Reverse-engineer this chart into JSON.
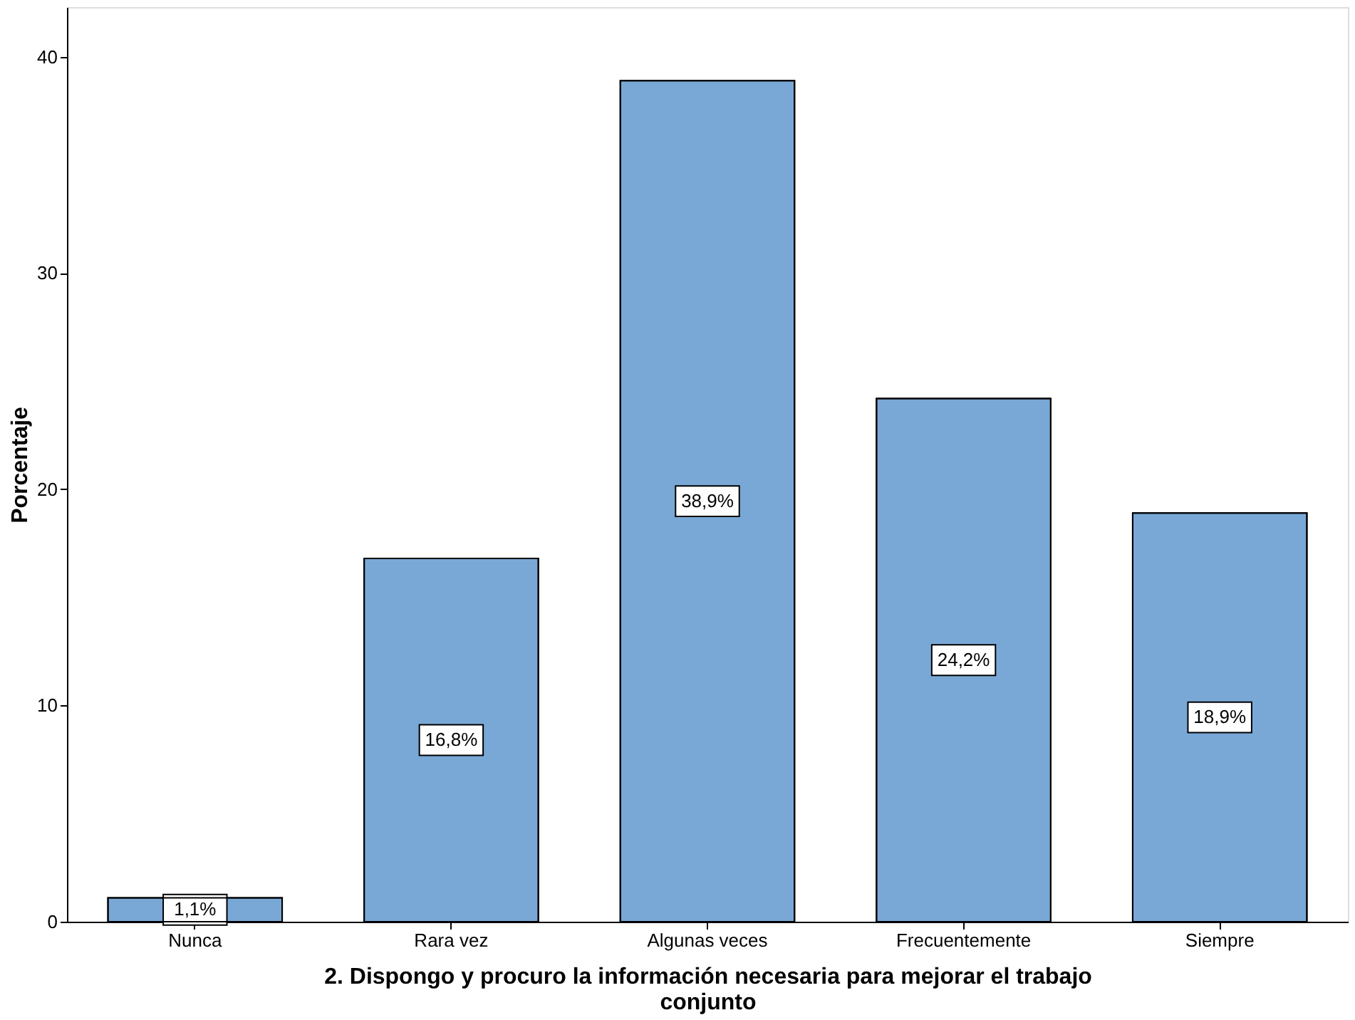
{
  "chart_data": {
    "type": "bar",
    "xlabel": "2. Dispongo y procuro la información necesaria para mejorar el trabajo conjunto",
    "ylabel": "Porcentaje",
    "categories": [
      "Nunca",
      "Rara vez",
      "Algunas veces",
      "Frecuentemente",
      "Siempre"
    ],
    "values": [
      1.1,
      16.8,
      38.9,
      24.2,
      18.9
    ],
    "value_labels": [
      "1,1%",
      "16,8%",
      "38,9%",
      "24,2%",
      "18,9%"
    ],
    "color": "#79a8d6",
    "ylim": [
      0,
      42.3
    ],
    "yticks": [
      0,
      10,
      20,
      30,
      40
    ],
    "grid": false
  }
}
